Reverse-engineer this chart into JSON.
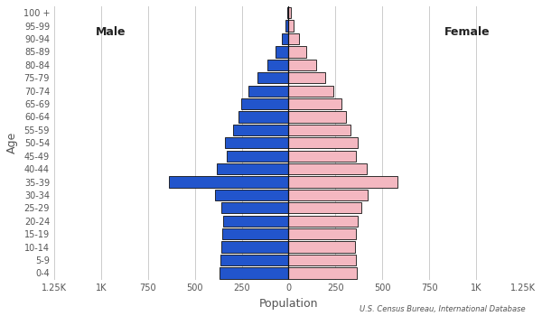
{
  "age_groups": [
    "0-4",
    "5-9",
    "10-14",
    "15-19",
    "20-24",
    "25-29",
    "30-34",
    "35-39",
    "40-44",
    "45-49",
    "50-54",
    "55-59",
    "60-64",
    "65-69",
    "70-74",
    "75-79",
    "80-84",
    "85-89",
    "90-94",
    "95-99",
    "100 +"
  ],
  "male": [
    370,
    365,
    360,
    355,
    350,
    360,
    390,
    640,
    385,
    330,
    340,
    295,
    265,
    255,
    215,
    165,
    115,
    70,
    35,
    15,
    5
  ],
  "female": [
    365,
    360,
    355,
    360,
    370,
    390,
    420,
    580,
    415,
    360,
    370,
    330,
    305,
    280,
    240,
    195,
    145,
    95,
    55,
    25,
    10
  ],
  "male_color": "#2255cc",
  "female_color": "#f4b8c1",
  "bar_edge_color": "#111111",
  "bar_linewidth": 0.6,
  "xlim": [
    -1250,
    1250
  ],
  "xtick_values": [
    -1250,
    -1000,
    -750,
    -500,
    -250,
    0,
    250,
    500,
    750,
    1000,
    1250
  ],
  "xtick_labels": [
    "1.25K",
    "1K",
    "750",
    "500",
    "250",
    "0",
    "250",
    "500",
    "750",
    "1K",
    "1.25K"
  ],
  "ylabel": "Age",
  "xlabel": "Population",
  "label_male": "Male",
  "label_female": "Female",
  "source_text": "U.S. Census Bureau, International Database",
  "bg_color": "#ffffff",
  "grid_color": "#cccccc",
  "text_color": "#555555",
  "bar_height": 0.85
}
